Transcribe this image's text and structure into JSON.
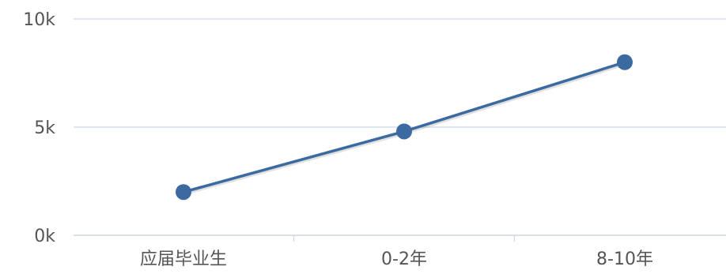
{
  "chart_data": {
    "type": "line",
    "categories": [
      "应届毕业生",
      "0-2年",
      "8-10年"
    ],
    "series": [
      {
        "values": [
          2000,
          4800,
          8000
        ],
        "color": "#3a6aa0"
      }
    ],
    "yticks": [
      {
        "value": 0,
        "label": "0k"
      },
      {
        "value": 5000,
        "label": "5k"
      },
      {
        "value": 10000,
        "label": "10k"
      }
    ],
    "ylim": [
      0,
      10000
    ],
    "grid": true,
    "colors": {
      "grid": "#cfd6e0",
      "axis": "#cfd6e0",
      "line": "#3a6aa0",
      "marker": "#3a6aa0"
    }
  }
}
